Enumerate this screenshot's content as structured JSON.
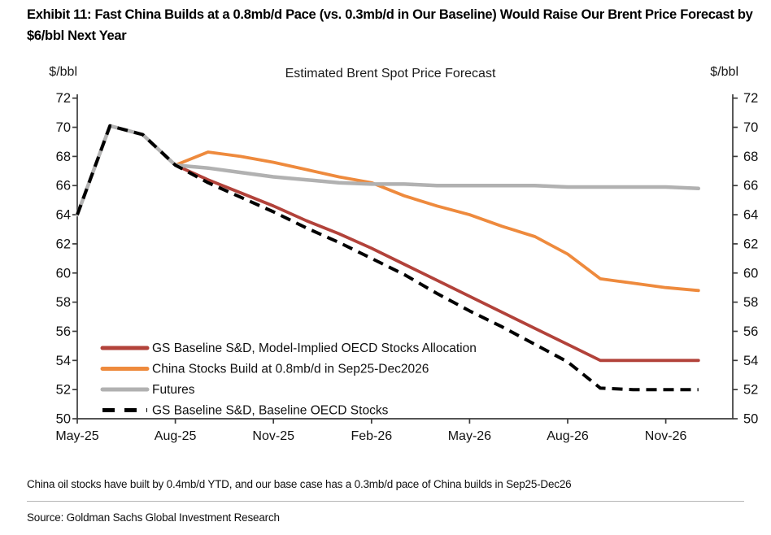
{
  "header": {
    "title": "Exhibit 11: Fast China Builds at a 0.8mb/d Pace (vs. 0.3mb/d in Our Baseline) Would Raise Our Brent Price Forecast by $6/bbl Next Year"
  },
  "chart_data": {
    "type": "line",
    "title": "Estimated Brent Spot Price Forecast",
    "ylabel_left": "$/bbl",
    "ylabel_right": "$/bbl",
    "ylim": [
      50,
      72
    ],
    "ytick_step": 2,
    "grid": false,
    "legend_position": "inside-bottom-left",
    "x": [
      "May-25",
      "Jun-25",
      "Jul-25",
      "Aug-25",
      "Sep-25",
      "Oct-25",
      "Nov-25",
      "Dec-25",
      "Jan-26",
      "Feb-26",
      "Mar-26",
      "Apr-26",
      "May-26",
      "Jun-26",
      "Jul-26",
      "Aug-26",
      "Sep-26",
      "Oct-26",
      "Nov-26",
      "Dec-26"
    ],
    "x_tick_labels": [
      "May-25",
      "Aug-25",
      "Nov-25",
      "Feb-26",
      "May-26",
      "Aug-26",
      "Nov-26"
    ],
    "x_tick_every": 3,
    "series": [
      {
        "name": "GS Baseline S&D, Model-Implied OECD Stocks Allocation",
        "color": "#b2423a",
        "style": "solid",
        "values": [
          64.0,
          70.1,
          69.5,
          67.4,
          66.4,
          65.5,
          64.6,
          63.6,
          62.7,
          61.7,
          60.6,
          59.5,
          58.4,
          57.3,
          56.2,
          55.1,
          54.0,
          54.0,
          54.0,
          54.0
        ]
      },
      {
        "name": "China Stocks Build at 0.8mb/d in Sep25-Dec2026",
        "color": "#ee8a3d",
        "style": "solid",
        "values": [
          64.0,
          70.1,
          69.5,
          67.4,
          68.3,
          68.0,
          67.6,
          67.1,
          66.6,
          66.2,
          65.3,
          64.6,
          64.0,
          63.2,
          62.5,
          61.3,
          59.6,
          59.3,
          59.0,
          58.8
        ]
      },
      {
        "name": "Futures",
        "color": "#b1b1b1",
        "style": "solid",
        "values": [
          64.0,
          70.1,
          69.5,
          67.4,
          67.2,
          66.9,
          66.6,
          66.4,
          66.2,
          66.1,
          66.1,
          66.0,
          66.0,
          66.0,
          66.0,
          65.9,
          65.9,
          65.9,
          65.9,
          65.8
        ]
      },
      {
        "name": "GS Baseline S&D, Baseline OECD Stocks",
        "color": "#000000",
        "style": "dashed",
        "values": [
          64.0,
          70.1,
          69.5,
          67.4,
          66.2,
          65.2,
          64.2,
          63.1,
          62.1,
          61.0,
          59.9,
          58.6,
          57.4,
          56.3,
          55.1,
          53.9,
          52.1,
          52.0,
          52.0,
          52.0
        ]
      }
    ]
  },
  "footnote": "China oil stocks have built by 0.4mb/d YTD, and our base case has a 0.3mb/d pace of China builds in Sep25-Dec26",
  "source": "Source: Goldman Sachs Global Investment Research",
  "colors": {
    "axis": "#3c3c3c",
    "tick_label": "#111111",
    "divider": "#b5b5b5"
  }
}
